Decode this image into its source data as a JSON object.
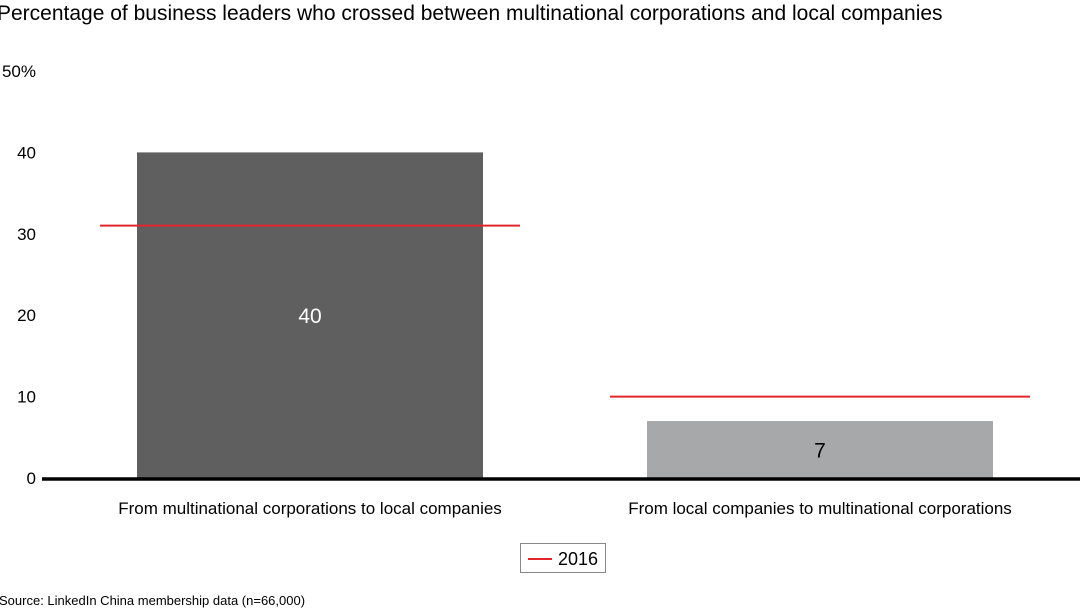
{
  "chart_data": {
    "type": "bar",
    "title": "Percentage of business leaders who crossed between multinational corporations and local companies",
    "categories": [
      "From multinational corporations to local companies",
      "From local companies to multinational corporations"
    ],
    "values": [
      40,
      7
    ],
    "value_labels": [
      "40",
      "7"
    ],
    "bar_colors": [
      "#5f5f5f",
      "#a7a8aa"
    ],
    "label_colors": [
      "#ffffff",
      "#000000"
    ],
    "reference_series": {
      "name": "2016",
      "values": [
        31,
        10
      ],
      "color": "#e3262b"
    },
    "ylim": [
      0,
      50
    ],
    "yticks": [
      0,
      10,
      20,
      30,
      40,
      50
    ],
    "ytick_labels": [
      "0",
      "10",
      "20",
      "30",
      "40",
      "50%"
    ],
    "grid": false,
    "legend": {
      "position": "bottom-center",
      "entries": [
        "2016"
      ]
    },
    "source": "Source: LinkedIn China membership data (n=66,000)"
  }
}
